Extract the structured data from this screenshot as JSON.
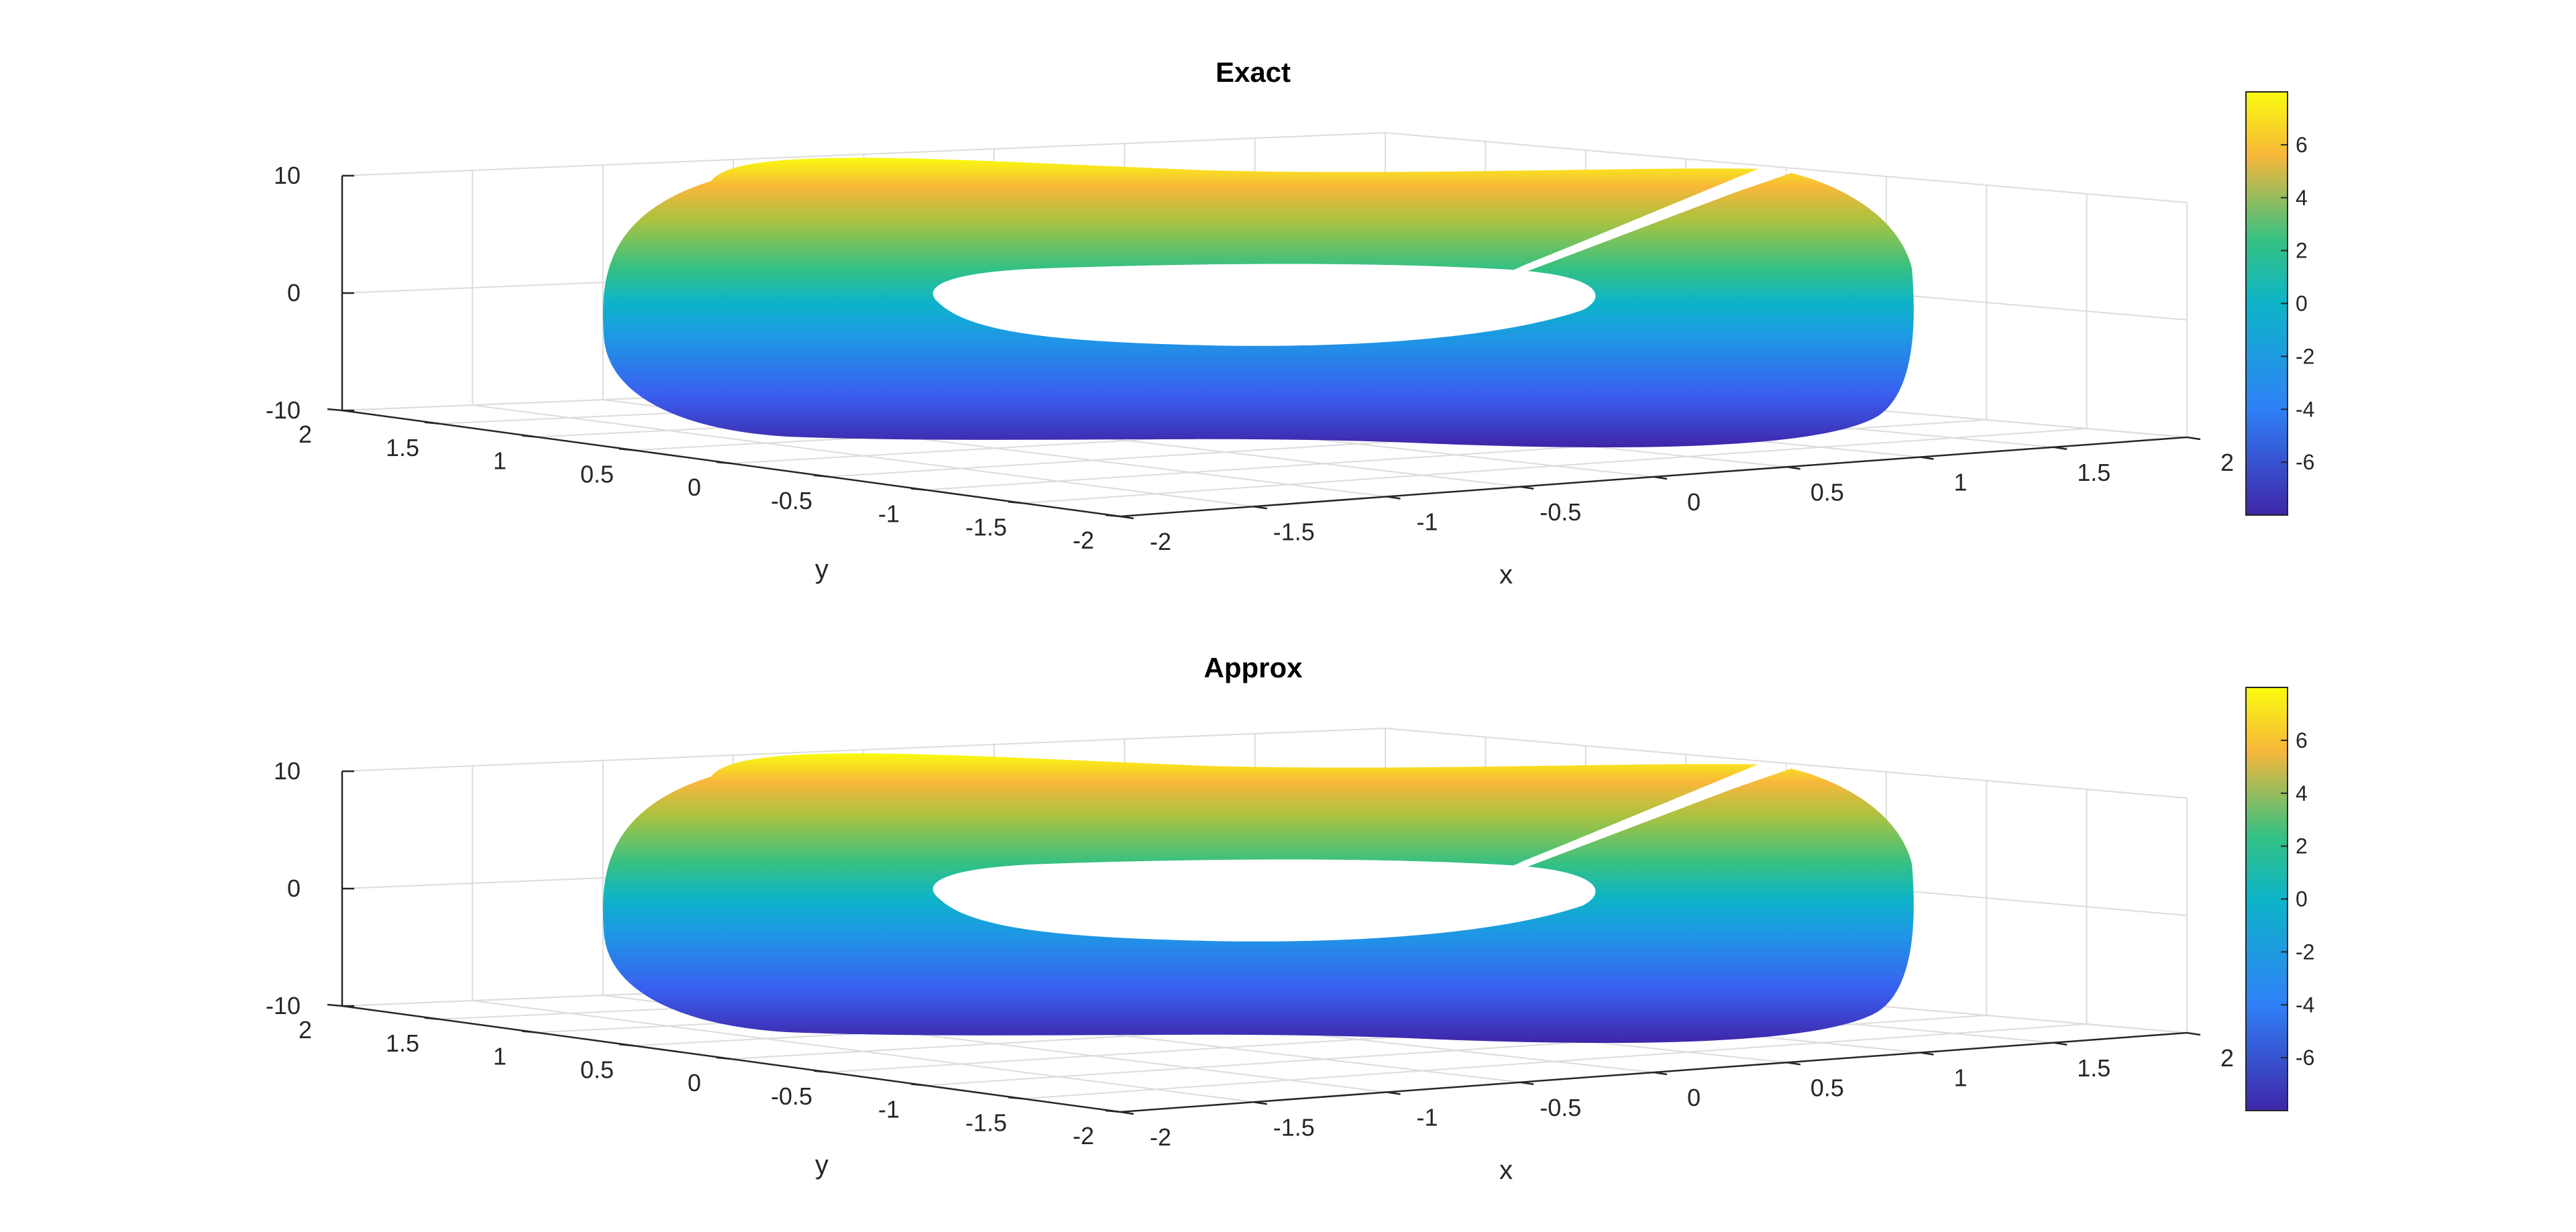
{
  "chart_data": [
    {
      "type": "surface3d",
      "title": "Exact",
      "xlabel": "x",
      "ylabel": "y",
      "zlabel": "",
      "xlim": [
        -2,
        2
      ],
      "ylim": [
        -2,
        2
      ],
      "zlim": [
        -10,
        10
      ],
      "x_ticks": [
        "-2",
        "-1.5",
        "-1",
        "-0.5",
        "0",
        "0.5",
        "1",
        "1.5",
        "2"
      ],
      "y_ticks": [
        "2",
        "1.5",
        "1",
        "0.5",
        "0",
        "-0.5",
        "-1",
        "-1.5",
        "-2"
      ],
      "z_ticks": [
        "10",
        "0",
        "-10"
      ],
      "grid": true,
      "colormap": "parula",
      "colorbar": {
        "range": [
          -8,
          8
        ],
        "ticks": [
          "6",
          "4",
          "2",
          "0",
          "-2",
          "-4",
          "-6"
        ],
        "placement": "right"
      }
    },
    {
      "type": "surface3d",
      "title": "Approx",
      "xlabel": "x",
      "ylabel": "y",
      "zlabel": "",
      "xlim": [
        -2,
        2
      ],
      "ylim": [
        -2,
        2
      ],
      "zlim": [
        -10,
        10
      ],
      "x_ticks": [
        "-2",
        "-1.5",
        "-1",
        "-0.5",
        "0",
        "0.5",
        "1",
        "1.5",
        "2"
      ],
      "y_ticks": [
        "2",
        "1.5",
        "1",
        "0.5",
        "0",
        "-0.5",
        "-1",
        "-1.5",
        "-2"
      ],
      "z_ticks": [
        "10",
        "0",
        "-10"
      ],
      "grid": true,
      "colormap": "parula",
      "colorbar": {
        "range": [
          -8,
          8
        ],
        "ticks": [
          "6",
          "4",
          "2",
          "0",
          "-2",
          "-4",
          "-6"
        ],
        "placement": "right"
      }
    }
  ],
  "colors": {
    "parula_dark": "#3E26A8",
    "parula_blue": "#2F80F7",
    "parula_cyan": "#0DB4C8",
    "parula_green": "#35C182",
    "parula_orange": "#F8B73A",
    "parula_yellow": "#F9FB0E",
    "grid": "#DCDCDC",
    "axis": "#262626"
  }
}
